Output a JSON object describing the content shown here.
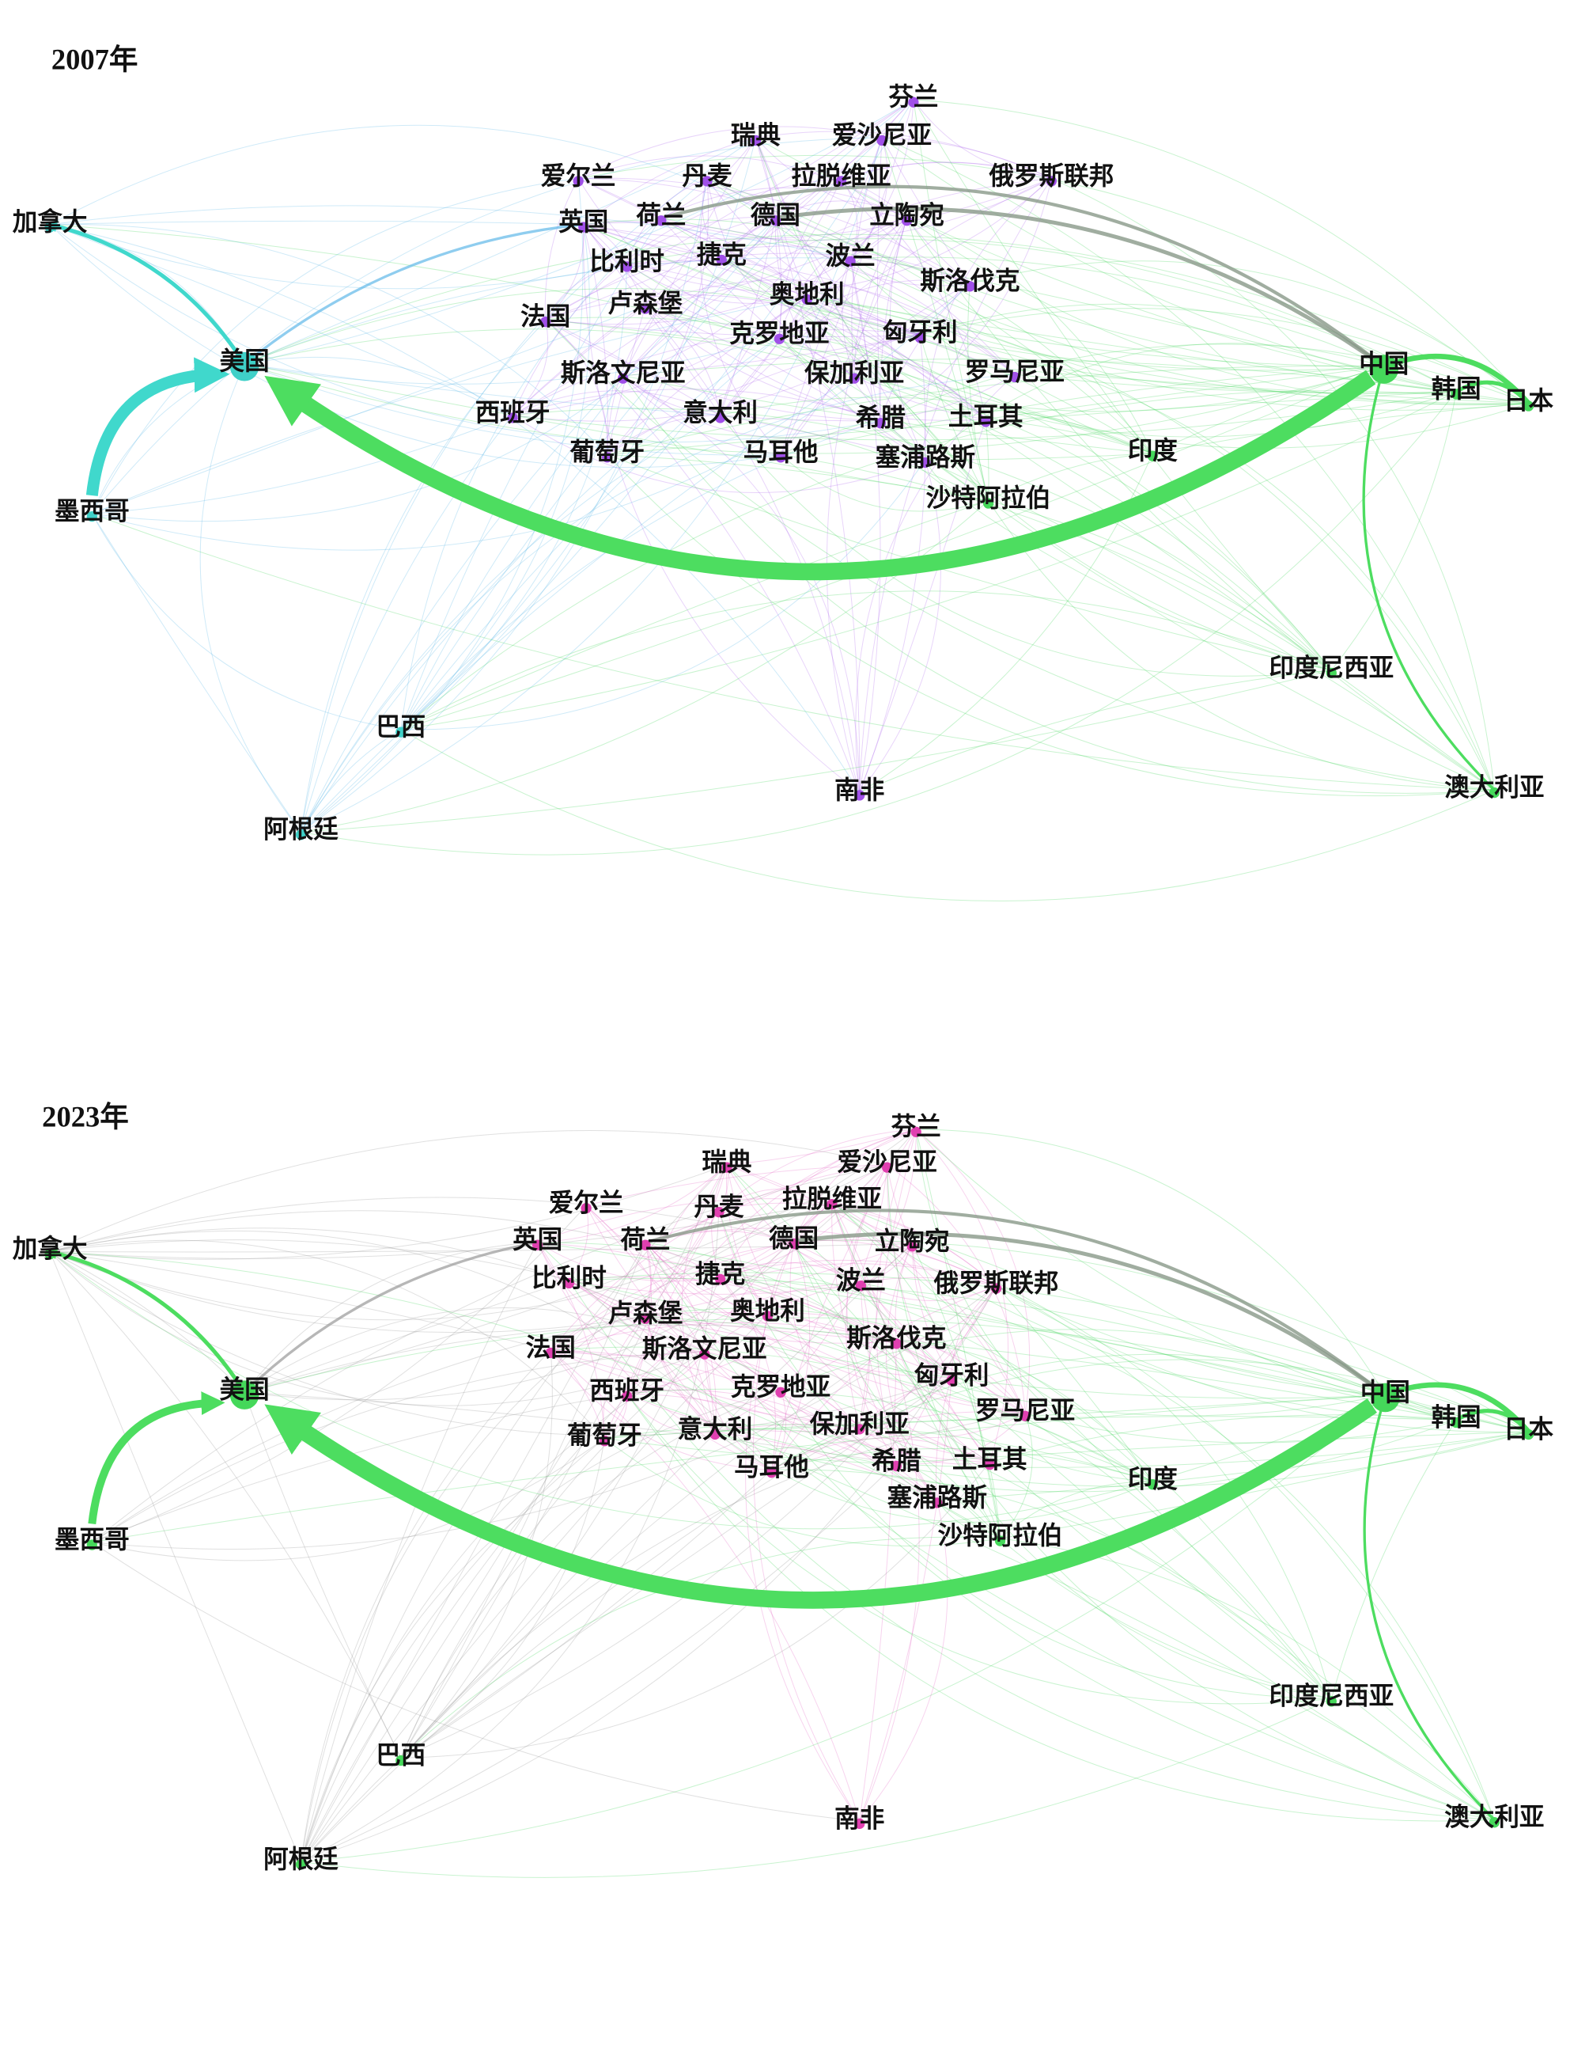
{
  "panels": [
    {
      "title": "2007年",
      "nodes": [
        "芬兰",
        "瑞典",
        "爱沙尼亚",
        "爱尔兰",
        "丹麦",
        "拉脱维亚",
        "俄罗斯联邦",
        "英国",
        "荷兰",
        "德国",
        "立陶宛",
        "比利时",
        "捷克",
        "波兰",
        "斯洛伐克",
        "卢森堡",
        "奥地利",
        "法国",
        "克罗地亚",
        "匈牙利",
        "美国",
        "中国",
        "斯洛文尼亚",
        "保加利亚",
        "罗马尼亚",
        "韩国",
        "日本",
        "西班牙",
        "意大利",
        "希腊",
        "土耳其",
        "葡萄牙",
        "马耳他",
        "塞浦路斯",
        "印度",
        "沙特阿拉伯",
        "加拿大",
        "墨西哥",
        "印度尼西亚",
        "巴西",
        "南非",
        "澳大利亚",
        "阿根廷"
      ]
    },
    {
      "title": "2023年",
      "nodes": [
        "芬兰",
        "瑞典",
        "爱沙尼亚",
        "爱尔兰",
        "丹麦",
        "拉脱维亚",
        "俄罗斯联邦",
        "英国",
        "荷兰",
        "德国",
        "立陶宛",
        "比利时",
        "捷克",
        "波兰",
        "斯洛伐克",
        "卢森堡",
        "奥地利",
        "法国",
        "克罗地亚",
        "匈牙利",
        "美国",
        "中国",
        "斯洛文尼亚",
        "保加利亚",
        "罗马尼亚",
        "韩国",
        "日本",
        "西班牙",
        "意大利",
        "希腊",
        "土耳其",
        "葡萄牙",
        "马耳他",
        "塞浦路斯",
        "印度",
        "沙特阿拉伯",
        "加拿大",
        "墨西哥",
        "印度尼西亚",
        "巴西",
        "南非",
        "澳大利亚",
        "阿根廷"
      ]
    }
  ]
}
